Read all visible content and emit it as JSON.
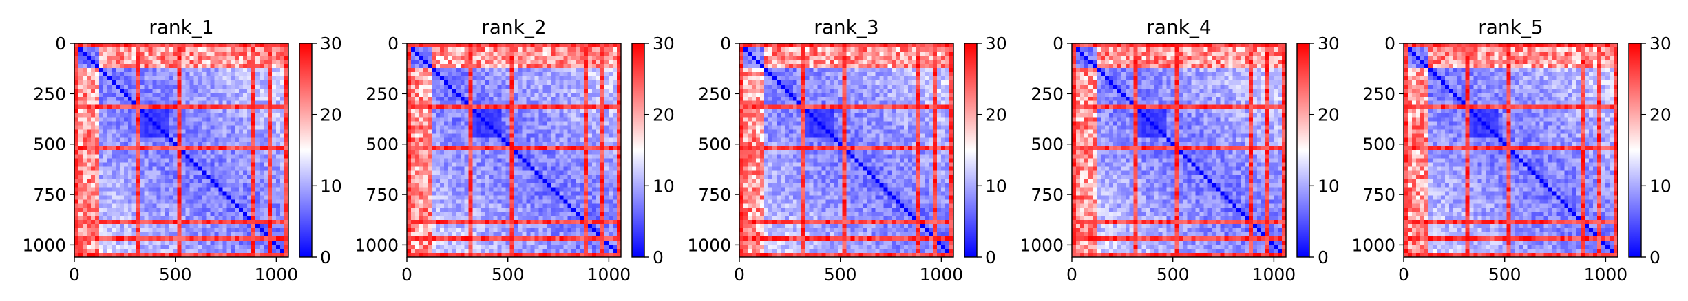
{
  "chart_data": [
    {
      "type": "heatmap",
      "title": "rank_1",
      "xlabel": "",
      "ylabel": "",
      "xlim": [
        0,
        1060
      ],
      "ylim": [
        1060,
        0
      ],
      "xticks": [
        0,
        500,
        1000
      ],
      "xtick_labels": [
        "0",
        "500",
        "1000"
      ],
      "yticks": [
        0,
        250,
        500,
        750,
        1000
      ],
      "ytick_labels": [
        "0",
        "250",
        "500",
        "750",
        "1000"
      ],
      "colormap": "bwr",
      "colorbar": {
        "min": 0,
        "max": 30,
        "ticks": [
          0,
          10,
          20,
          30
        ],
        "tick_labels": [
          "0",
          "10",
          "20",
          "30"
        ]
      },
      "red_rows": [
        20,
        320,
        515,
        880,
        960,
        1055
      ],
      "red_cols": [
        20,
        320,
        515,
        880,
        960,
        1055
      ],
      "red_top_band": [
        0,
        110
      ]
    },
    {
      "type": "heatmap",
      "title": "rank_2",
      "xlabel": "",
      "ylabel": "",
      "xlim": [
        0,
        1060
      ],
      "ylim": [
        1060,
        0
      ],
      "xticks": [
        0,
        500,
        1000
      ],
      "xtick_labels": [
        "0",
        "500",
        "1000"
      ],
      "yticks": [
        0,
        250,
        500,
        750,
        1000
      ],
      "ytick_labels": [
        "0",
        "250",
        "500",
        "750",
        "1000"
      ],
      "colormap": "bwr",
      "colorbar": {
        "min": 0,
        "max": 30,
        "ticks": [
          0,
          10,
          20,
          30
        ],
        "tick_labels": [
          "0",
          "10",
          "20",
          "30"
        ]
      },
      "red_rows": [
        20,
        320,
        515,
        880,
        960,
        1055
      ],
      "red_cols": [
        20,
        320,
        515,
        880,
        960,
        1055
      ],
      "red_top_band": [
        0,
        110
      ]
    },
    {
      "type": "heatmap",
      "title": "rank_3",
      "xlabel": "",
      "ylabel": "",
      "xlim": [
        0,
        1060
      ],
      "ylim": [
        1060,
        0
      ],
      "xticks": [
        0,
        500,
        1000
      ],
      "xtick_labels": [
        "0",
        "500",
        "1000"
      ],
      "yticks": [
        0,
        250,
        500,
        750,
        1000
      ],
      "ytick_labels": [
        "0",
        "250",
        "500",
        "750",
        "1000"
      ],
      "colormap": "bwr",
      "colorbar": {
        "min": 0,
        "max": 30,
        "ticks": [
          0,
          10,
          20,
          30
        ],
        "tick_labels": [
          "0",
          "10",
          "20",
          "30"
        ]
      },
      "red_rows": [
        20,
        320,
        515,
        880,
        960,
        1055
      ],
      "red_cols": [
        20,
        320,
        515,
        880,
        960,
        1055
      ],
      "red_top_band": [
        0,
        110
      ]
    },
    {
      "type": "heatmap",
      "title": "rank_4",
      "xlabel": "",
      "ylabel": "",
      "xlim": [
        0,
        1060
      ],
      "ylim": [
        1060,
        0
      ],
      "xticks": [
        0,
        500,
        1000
      ],
      "xtick_labels": [
        "0",
        "500",
        "1000"
      ],
      "yticks": [
        0,
        250,
        500,
        750,
        1000
      ],
      "ytick_labels": [
        "0",
        "250",
        "500",
        "750",
        "1000"
      ],
      "colormap": "bwr",
      "colorbar": {
        "min": 0,
        "max": 30,
        "ticks": [
          0,
          10,
          20,
          30
        ],
        "tick_labels": [
          "0",
          "10",
          "20",
          "30"
        ]
      },
      "red_rows": [
        20,
        320,
        515,
        880,
        960,
        1055
      ],
      "red_cols": [
        20,
        320,
        515,
        880,
        960,
        1055
      ],
      "red_top_band": [
        0,
        110
      ]
    },
    {
      "type": "heatmap",
      "title": "rank_5",
      "xlabel": "",
      "ylabel": "",
      "xlim": [
        0,
        1060
      ],
      "ylim": [
        1060,
        0
      ],
      "xticks": [
        0,
        500,
        1000
      ],
      "xtick_labels": [
        "0",
        "500",
        "1000"
      ],
      "yticks": [
        0,
        250,
        500,
        750,
        1000
      ],
      "ytick_labels": [
        "0",
        "250",
        "500",
        "750",
        "1000"
      ],
      "colormap": "bwr",
      "colorbar": {
        "min": 0,
        "max": 30,
        "ticks": [
          0,
          10,
          20,
          30
        ],
        "tick_labels": [
          "0",
          "10",
          "20",
          "30"
        ]
      },
      "red_rows": [
        20,
        320,
        515,
        880,
        960,
        1055
      ],
      "red_cols": [
        20,
        320,
        515,
        880,
        960,
        1055
      ],
      "red_top_band": [
        0,
        110
      ]
    }
  ],
  "colors": {
    "low": "#0000ff",
    "mid": "#ffffff",
    "high": "#ff0000",
    "axis": "#000000"
  }
}
